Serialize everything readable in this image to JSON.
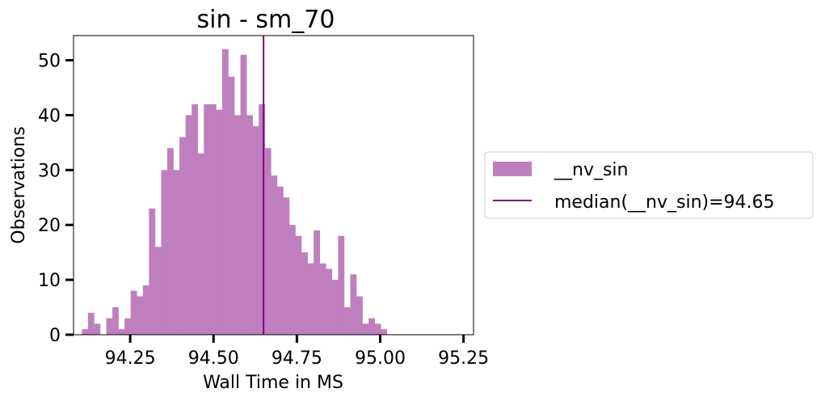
{
  "chart_data": {
    "type": "bar",
    "title": "sin - sm_70",
    "xlabel": "Wall Time in MS",
    "ylabel": "Observations",
    "xlim": [
      94.08,
      95.28
    ],
    "ylim": [
      0,
      54.5
    ],
    "xticks": [
      "94.25",
      "94.50",
      "94.75",
      "95.00",
      "95.25"
    ],
    "yticks": [
      "0",
      "10",
      "20",
      "30",
      "40",
      "50"
    ],
    "grid": false,
    "legend_placement": "outside-right",
    "bin_start": 94.105,
    "bin_width": 0.0183,
    "counts": [
      1,
      4,
      2,
      0,
      3,
      5,
      1,
      3,
      8,
      7,
      9,
      23,
      16,
      30,
      34,
      30,
      36,
      40,
      42,
      33,
      42,
      42,
      41,
      52,
      47,
      40,
      51,
      40,
      38,
      42,
      34,
      29,
      27,
      25,
      20,
      18,
      15,
      13,
      19,
      13,
      12,
      10,
      18,
      5,
      11,
      7,
      2,
      3,
      2,
      1
    ],
    "series": [
      {
        "name": "__nv_sin",
        "color": "#bf7fbf"
      }
    ],
    "median": {
      "label": "median(__nv_sin)=94.65",
      "value": 94.65,
      "color": "#800080"
    }
  }
}
